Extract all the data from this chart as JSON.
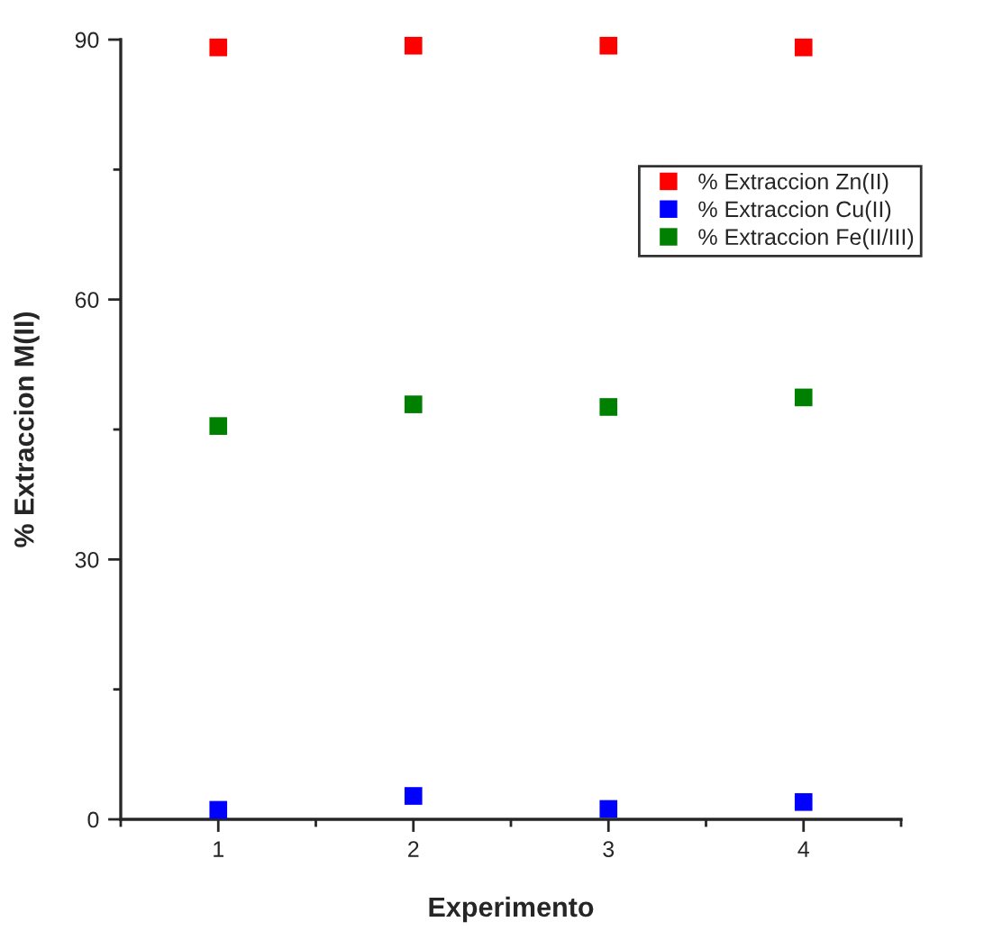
{
  "chart_data": {
    "type": "scatter",
    "xlabel": "Experimento",
    "ylabel": "% Extraccion M(II)",
    "x": [
      1,
      2,
      3,
      4
    ],
    "series": [
      {
        "name": "% Extraccion Zn(II)",
        "color": "#ff0000",
        "values": [
          89.1,
          89.3,
          89.3,
          89.1
        ]
      },
      {
        "name": "% Extraccion Cu(II)",
        "color": "#0000ff",
        "values": [
          1.1,
          2.7,
          1.2,
          2.0
        ]
      },
      {
        "name": "% Extraccion Fe(II/III)",
        "color": "#008000",
        "values": [
          45.4,
          47.9,
          47.6,
          48.7
        ]
      }
    ],
    "xlim": [
      0.5,
      4.5
    ],
    "xticks": [
      {
        "value": 0.5,
        "label": null
      },
      1,
      {
        "value": 1.5,
        "label": null
      },
      2,
      {
        "value": 2.5,
        "label": null
      },
      3,
      {
        "value": 3.5,
        "label": null
      },
      4,
      {
        "value": 4.5,
        "label": null
      }
    ],
    "ylim": [
      0,
      90
    ],
    "yticks": [
      0,
      {
        "value": 15,
        "label": null
      },
      30,
      {
        "value": 45,
        "label": null
      },
      60,
      {
        "value": 75,
        "label": null
      },
      90
    ],
    "marker": "square",
    "legend": "right",
    "grid": false
  }
}
